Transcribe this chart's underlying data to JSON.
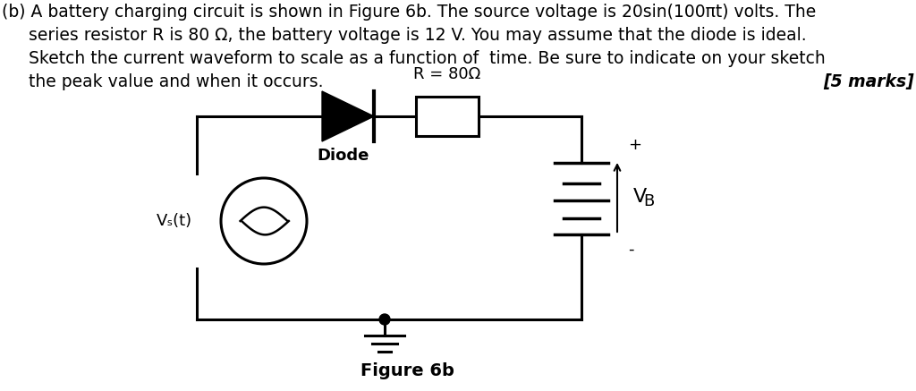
{
  "background_color": "#ffffff",
  "text_block": {
    "line1": "(b) A battery charging circuit is shown in Figure 6b. The source voltage is 20sin(100πt) volts. The",
    "line2": "     series resistor R is 80 Ω, the battery voltage is 12 V. You may assume that the diode is ideal.",
    "line3": "     Sketch the current waveform to scale as a function of  time. Be sure to indicate on your sketch",
    "line4": "     the peak value and when it occurs.",
    "marks": "[5 marks]",
    "figure_label": "Figure 6b"
  },
  "labels": {
    "R_label": "R = 80Ω",
    "diode_label": "Diode",
    "Vs_label": "Vₛ(t)",
    "VB_label": "VB",
    "plus": "+",
    "minus": "-"
  },
  "font_size_body": 13.5,
  "font_size_label": 13,
  "font_size_figure": 13
}
